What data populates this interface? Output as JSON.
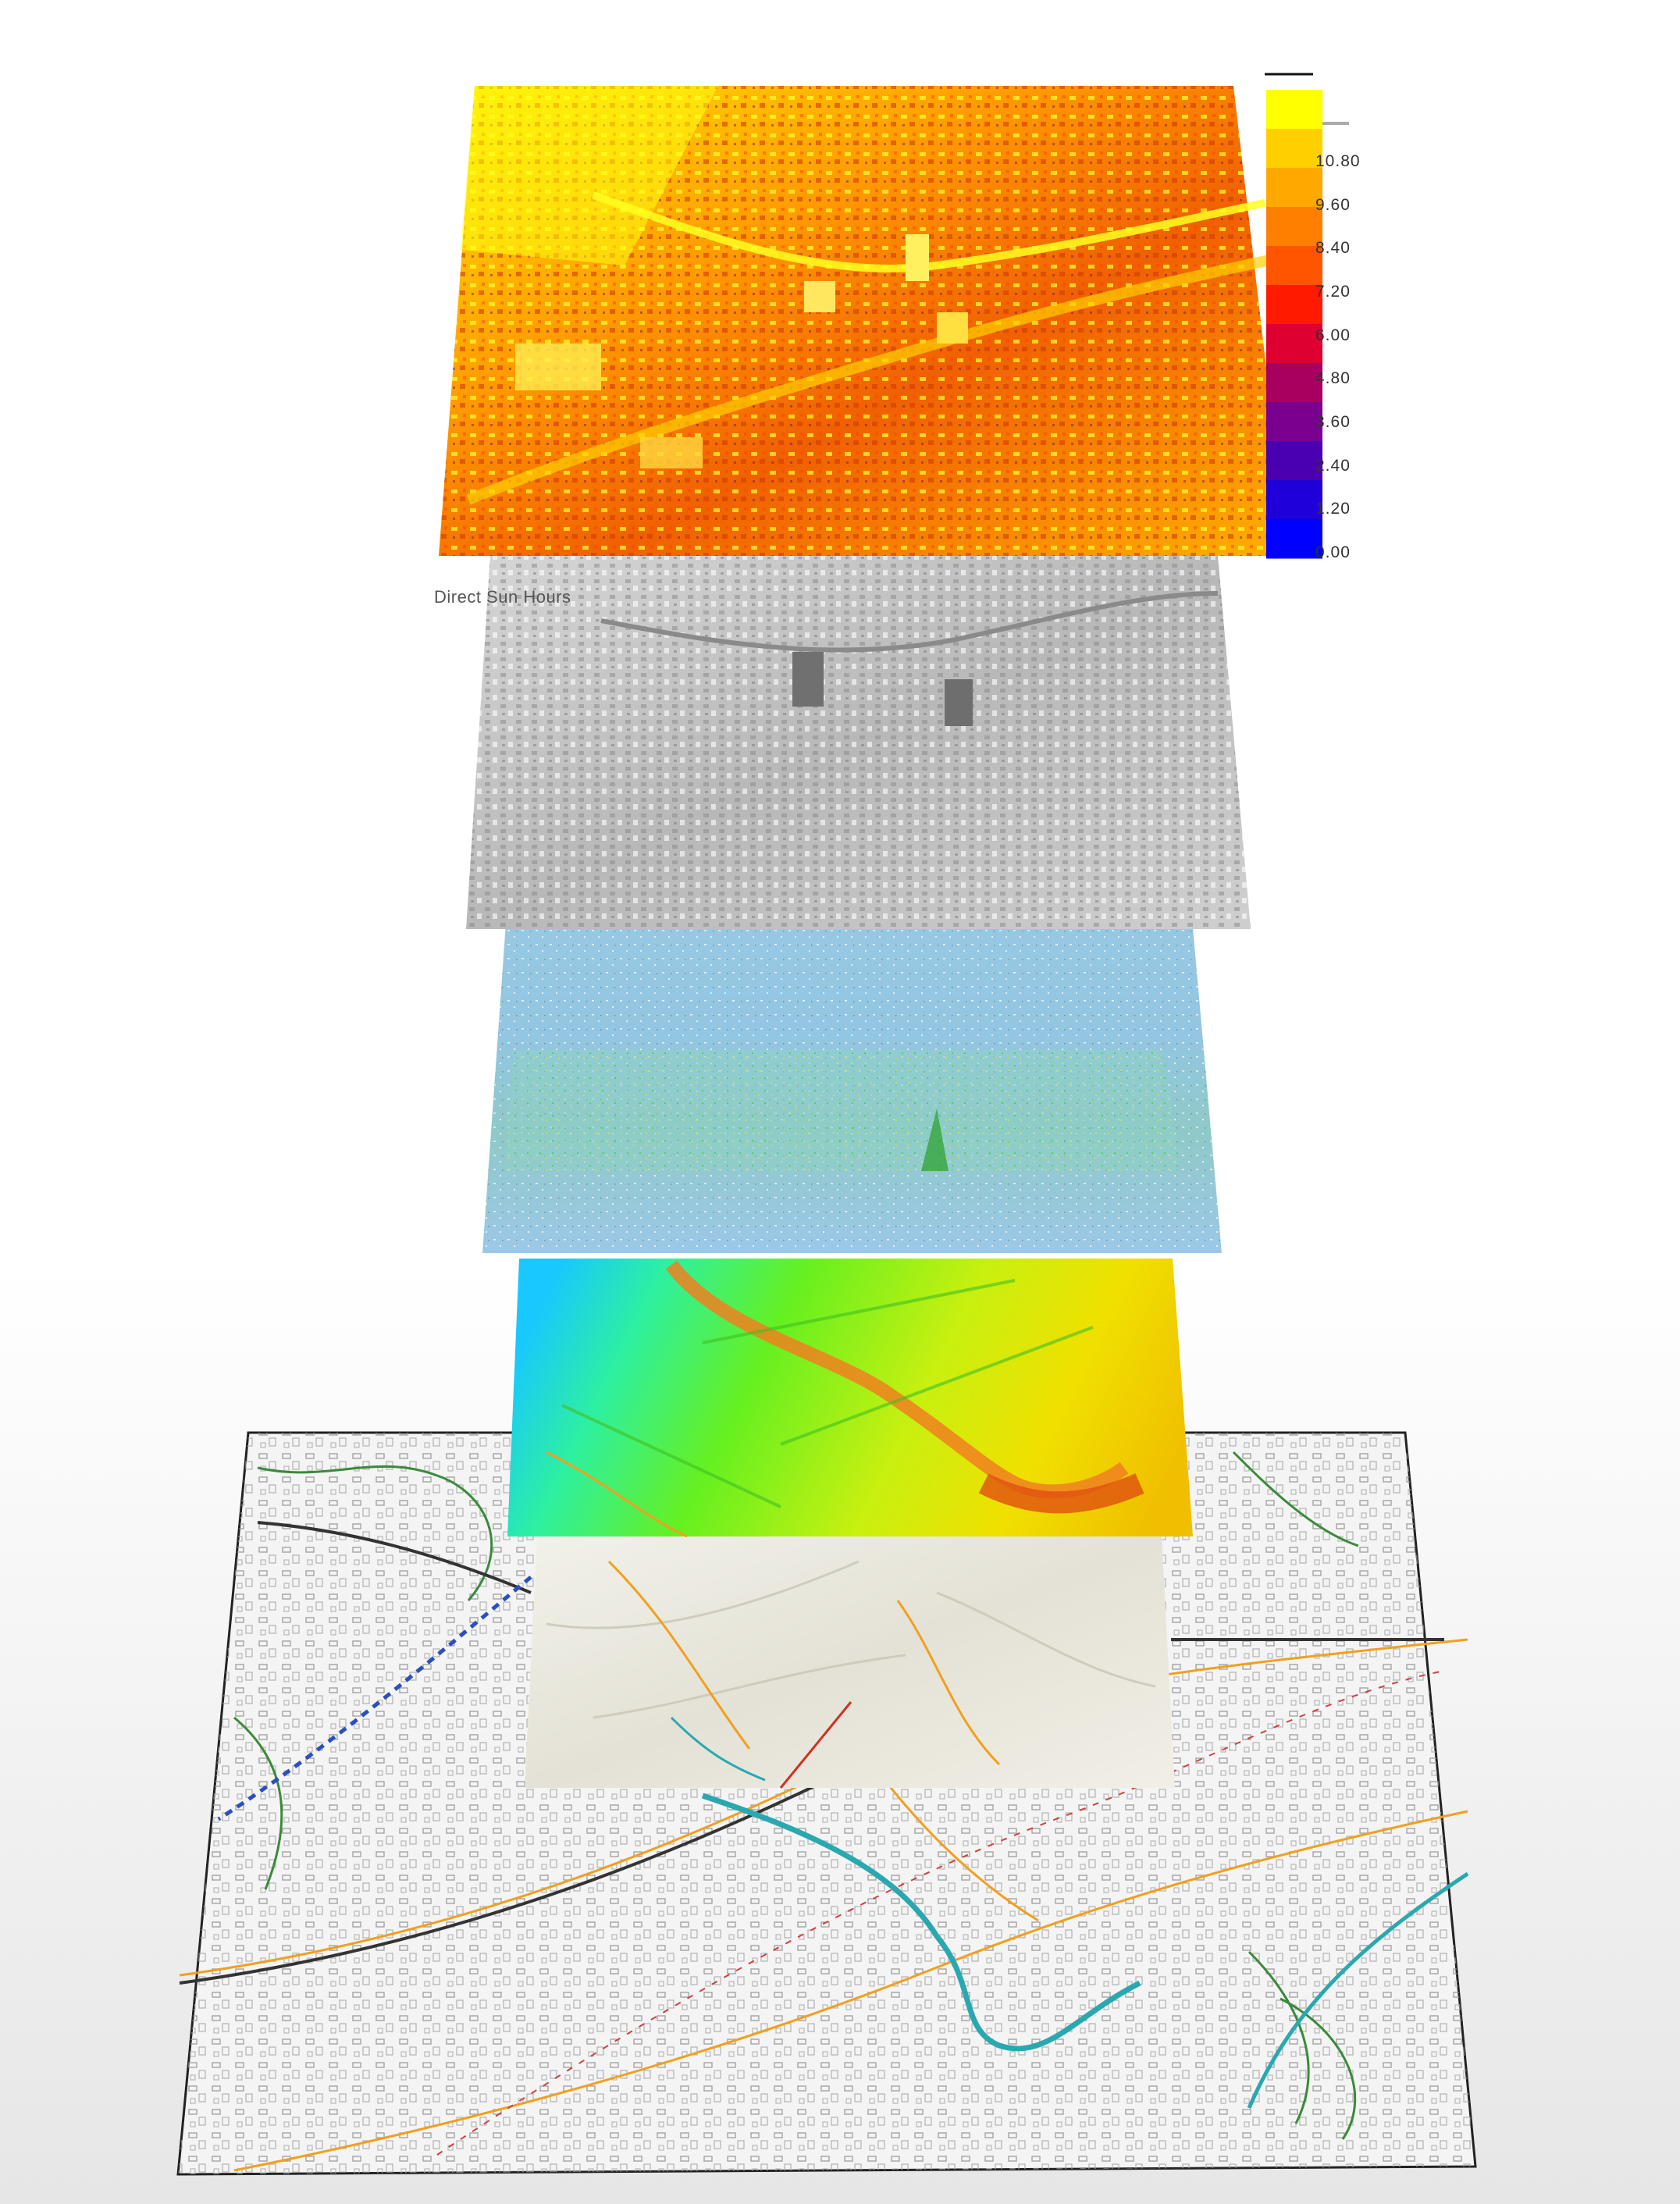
{
  "layers": [
    {
      "id": "base-map",
      "name": "base-map-layer"
    },
    {
      "id": "hillshade",
      "name": "hillshade-layer"
    },
    {
      "id": "elevation",
      "name": "elevation-layer"
    },
    {
      "id": "water-green",
      "name": "surface-analysis-layer"
    },
    {
      "id": "sky-blue",
      "name": "sky-view-layer"
    },
    {
      "id": "gray-model",
      "name": "city-model-layer"
    },
    {
      "id": "sun-hours",
      "name": "sun-hours-layer"
    }
  ],
  "caption": "Direct Sun Hours",
  "legend": {
    "ticks": [
      "10.80",
      "9.60",
      "8.40",
      "7.20",
      "6.00",
      "4.80",
      "3.60",
      "2.40",
      "1.20",
      "0.00"
    ],
    "colors": [
      "#ffff00",
      "#ffd000",
      "#ffa800",
      "#ff7f00",
      "#ff5500",
      "#ff1a00",
      "#dd0030",
      "#a80060",
      "#7a0090",
      "#4a00b0",
      "#2000d8",
      "#0000ff"
    ]
  },
  "colors": {
    "basemap_lines": "#9a9a9a",
    "roads": "#f0a020",
    "greenway": "#3a8a3a",
    "river": "#2aa8b0",
    "rail": "#333333"
  }
}
